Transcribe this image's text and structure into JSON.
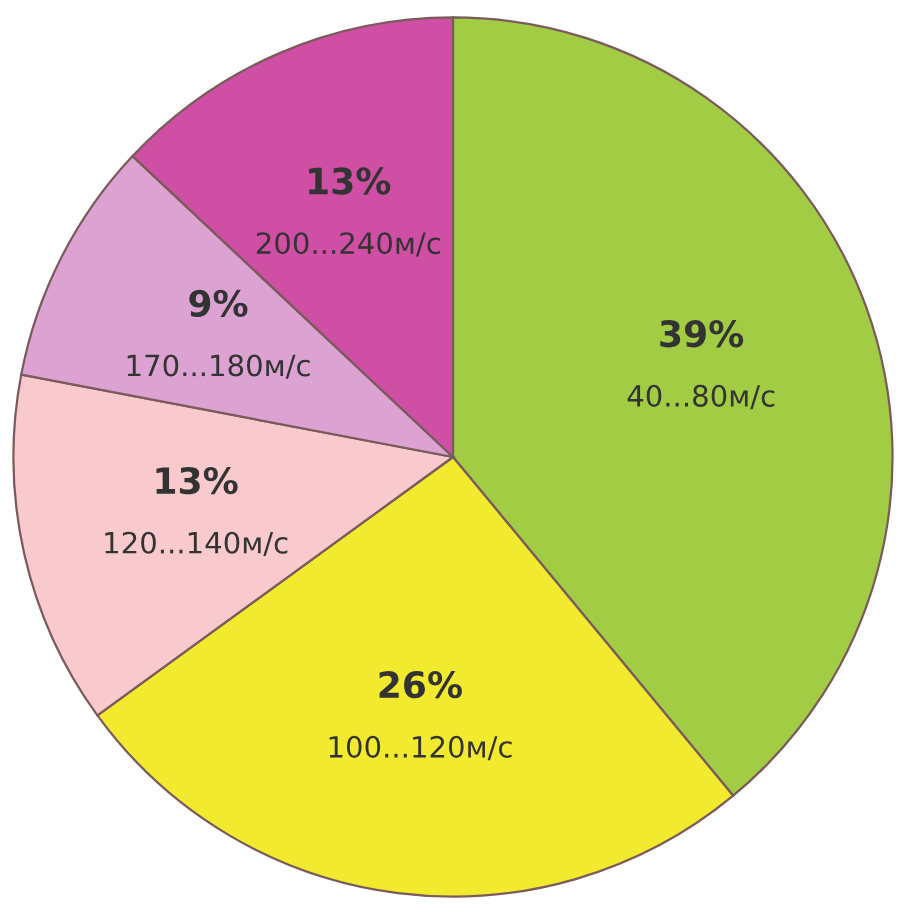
{
  "chart_data": {
    "type": "pie",
    "categories": [
      "40...80м/с",
      "100...120м/с",
      "120...140м/с",
      "170...180м/с",
      "200...240м/с"
    ],
    "values": [
      39,
      26,
      13,
      9,
      13
    ],
    "value_labels": [
      "39%",
      "26%",
      "13%",
      "9%",
      "13%"
    ],
    "colors": [
      "#a3cc45",
      "#f2ea2e",
      "#f8c9cd",
      "#dca3d2",
      "#cf4fa5"
    ],
    "legend": false
  }
}
